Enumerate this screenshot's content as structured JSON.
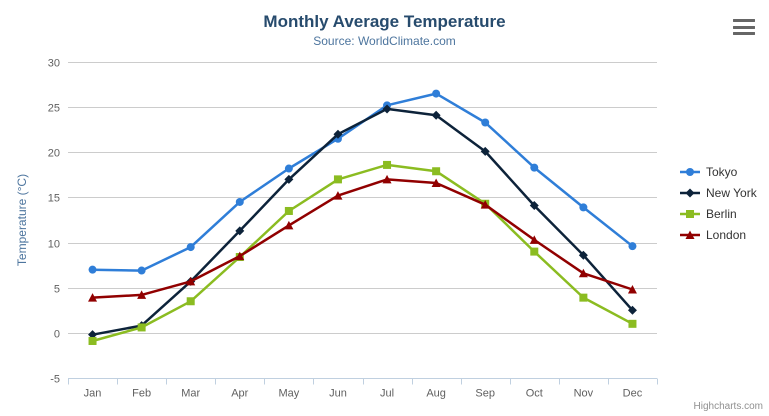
{
  "chart": {
    "title": "Monthly Average Temperature",
    "subtitle": "Source: WorldClimate.com",
    "credits": "Highcharts.com",
    "title_color": "#274b6d",
    "subtitle_color": "#4d759e",
    "menu_icon_color": "#666666"
  },
  "chart_data": {
    "type": "line",
    "title": "Monthly Average Temperature",
    "subtitle": "Source: WorldClimate.com",
    "categories": [
      "Jan",
      "Feb",
      "Mar",
      "Apr",
      "May",
      "Jun",
      "Jul",
      "Aug",
      "Sep",
      "Oct",
      "Nov",
      "Dec"
    ],
    "xlabel": "",
    "ylabel": "Temperature (°C)",
    "ylim": [
      -5,
      30
    ],
    "ytick_step": 5,
    "grid": true,
    "legend_position": "right",
    "series": [
      {
        "name": "Tokyo",
        "color": "#2f7ed8",
        "marker": "circle",
        "values": [
          7.0,
          6.9,
          9.5,
          14.5,
          18.2,
          21.5,
          25.2,
          26.5,
          23.3,
          18.3,
          13.9,
          9.6
        ]
      },
      {
        "name": "New York",
        "color": "#0d233a",
        "marker": "diamond",
        "values": [
          -0.2,
          0.8,
          5.7,
          11.3,
          17.0,
          22.0,
          24.8,
          24.1,
          20.1,
          14.1,
          8.6,
          2.5
        ]
      },
      {
        "name": "Berlin",
        "color": "#8bbc21",
        "marker": "square",
        "values": [
          -0.9,
          0.6,
          3.5,
          8.4,
          13.5,
          17.0,
          18.6,
          17.9,
          14.3,
          9.0,
          3.9,
          1.0
        ]
      },
      {
        "name": "London",
        "color": "#910000",
        "marker": "triangle",
        "values": [
          3.9,
          4.2,
          5.7,
          8.5,
          11.9,
          15.2,
          17.0,
          16.6,
          14.2,
          10.3,
          6.6,
          4.8
        ]
      }
    ],
    "style": {
      "grid_color": "#cccccc",
      "axis_line_color": "#c0d0e0",
      "tick_label_color": "#606060",
      "axis_title_color": "#4d759e",
      "legend_text_color": "#333333",
      "credits_color": "#909090"
    }
  }
}
